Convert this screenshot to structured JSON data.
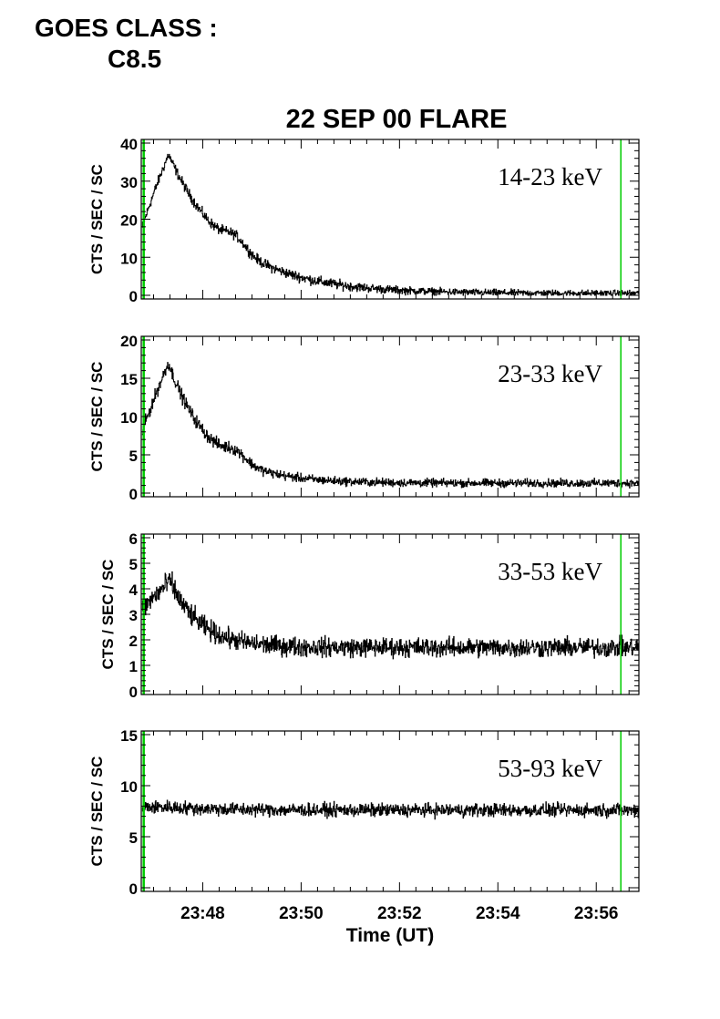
{
  "header": {
    "goes_label": "GOES CLASS :",
    "goes_value": "C8.5"
  },
  "chart_data": {
    "type": "line",
    "title": "22 SEP 00 FLARE",
    "xlabel": "Time (UT)",
    "x_start": "23:46:45",
    "x_end": "23:56:52",
    "x_tick_labels": [
      "23:48",
      "23:50",
      "23:52",
      "23:54",
      "23:56"
    ],
    "marker_lines": {
      "color": "#00cc00",
      "times": [
        "23:46:48",
        "23:56:30"
      ]
    },
    "line_color": "#000000",
    "panels": [
      {
        "band_label": "14-23 keV",
        "ylabel": "CTS / SEC / SC",
        "ylim": [
          0,
          40
        ],
        "yticks": [
          0,
          10,
          20,
          30,
          40
        ],
        "profile": {
          "base": 0.5,
          "peak": 37,
          "peak_time": "23:47:18",
          "rise_start_frac": 0.45,
          "decay_min": 1.25,
          "noise": 0.7,
          "secondary_bump": {
            "time": "23:48:40",
            "amp": 3
          }
        }
      },
      {
        "band_label": "23-33 keV",
        "ylabel": "CTS / SEC / SC",
        "ylim": [
          0,
          20
        ],
        "yticks": [
          0,
          5,
          10,
          15,
          20
        ],
        "profile": {
          "base": 1.3,
          "peak": 17,
          "peak_time": "23:47:18",
          "rise_start_frac": 0.4,
          "decay_min": 0.85,
          "noise": 0.45,
          "secondary_bump": {
            "time": "23:48:40",
            "amp": 1.2
          }
        }
      },
      {
        "band_label": "33-53 keV",
        "ylabel": "CTS / SEC / SC",
        "ylim": [
          0,
          6
        ],
        "yticks": [
          0,
          1,
          2,
          3,
          4,
          5,
          6
        ],
        "profile": {
          "base": 1.7,
          "peak": 4.3,
          "peak_time": "23:47:20",
          "rise_start_frac": 0.55,
          "decay_min": 0.6,
          "noise": 0.32,
          "secondary_bump": {
            "time": "23:48:40",
            "amp": 0
          }
        }
      },
      {
        "band_label": "53-93 keV",
        "ylabel": "CTS / SEC / SC",
        "ylim": [
          0,
          15
        ],
        "yticks": [
          0,
          5,
          10,
          15
        ],
        "profile": {
          "base": 7.6,
          "peak": 7.9,
          "peak_time": "23:47:20",
          "rise_start_frac": 1.0,
          "decay_min": 1.0,
          "noise": 0.55,
          "secondary_bump": {
            "time": "23:48:40",
            "amp": 0
          }
        }
      }
    ]
  }
}
